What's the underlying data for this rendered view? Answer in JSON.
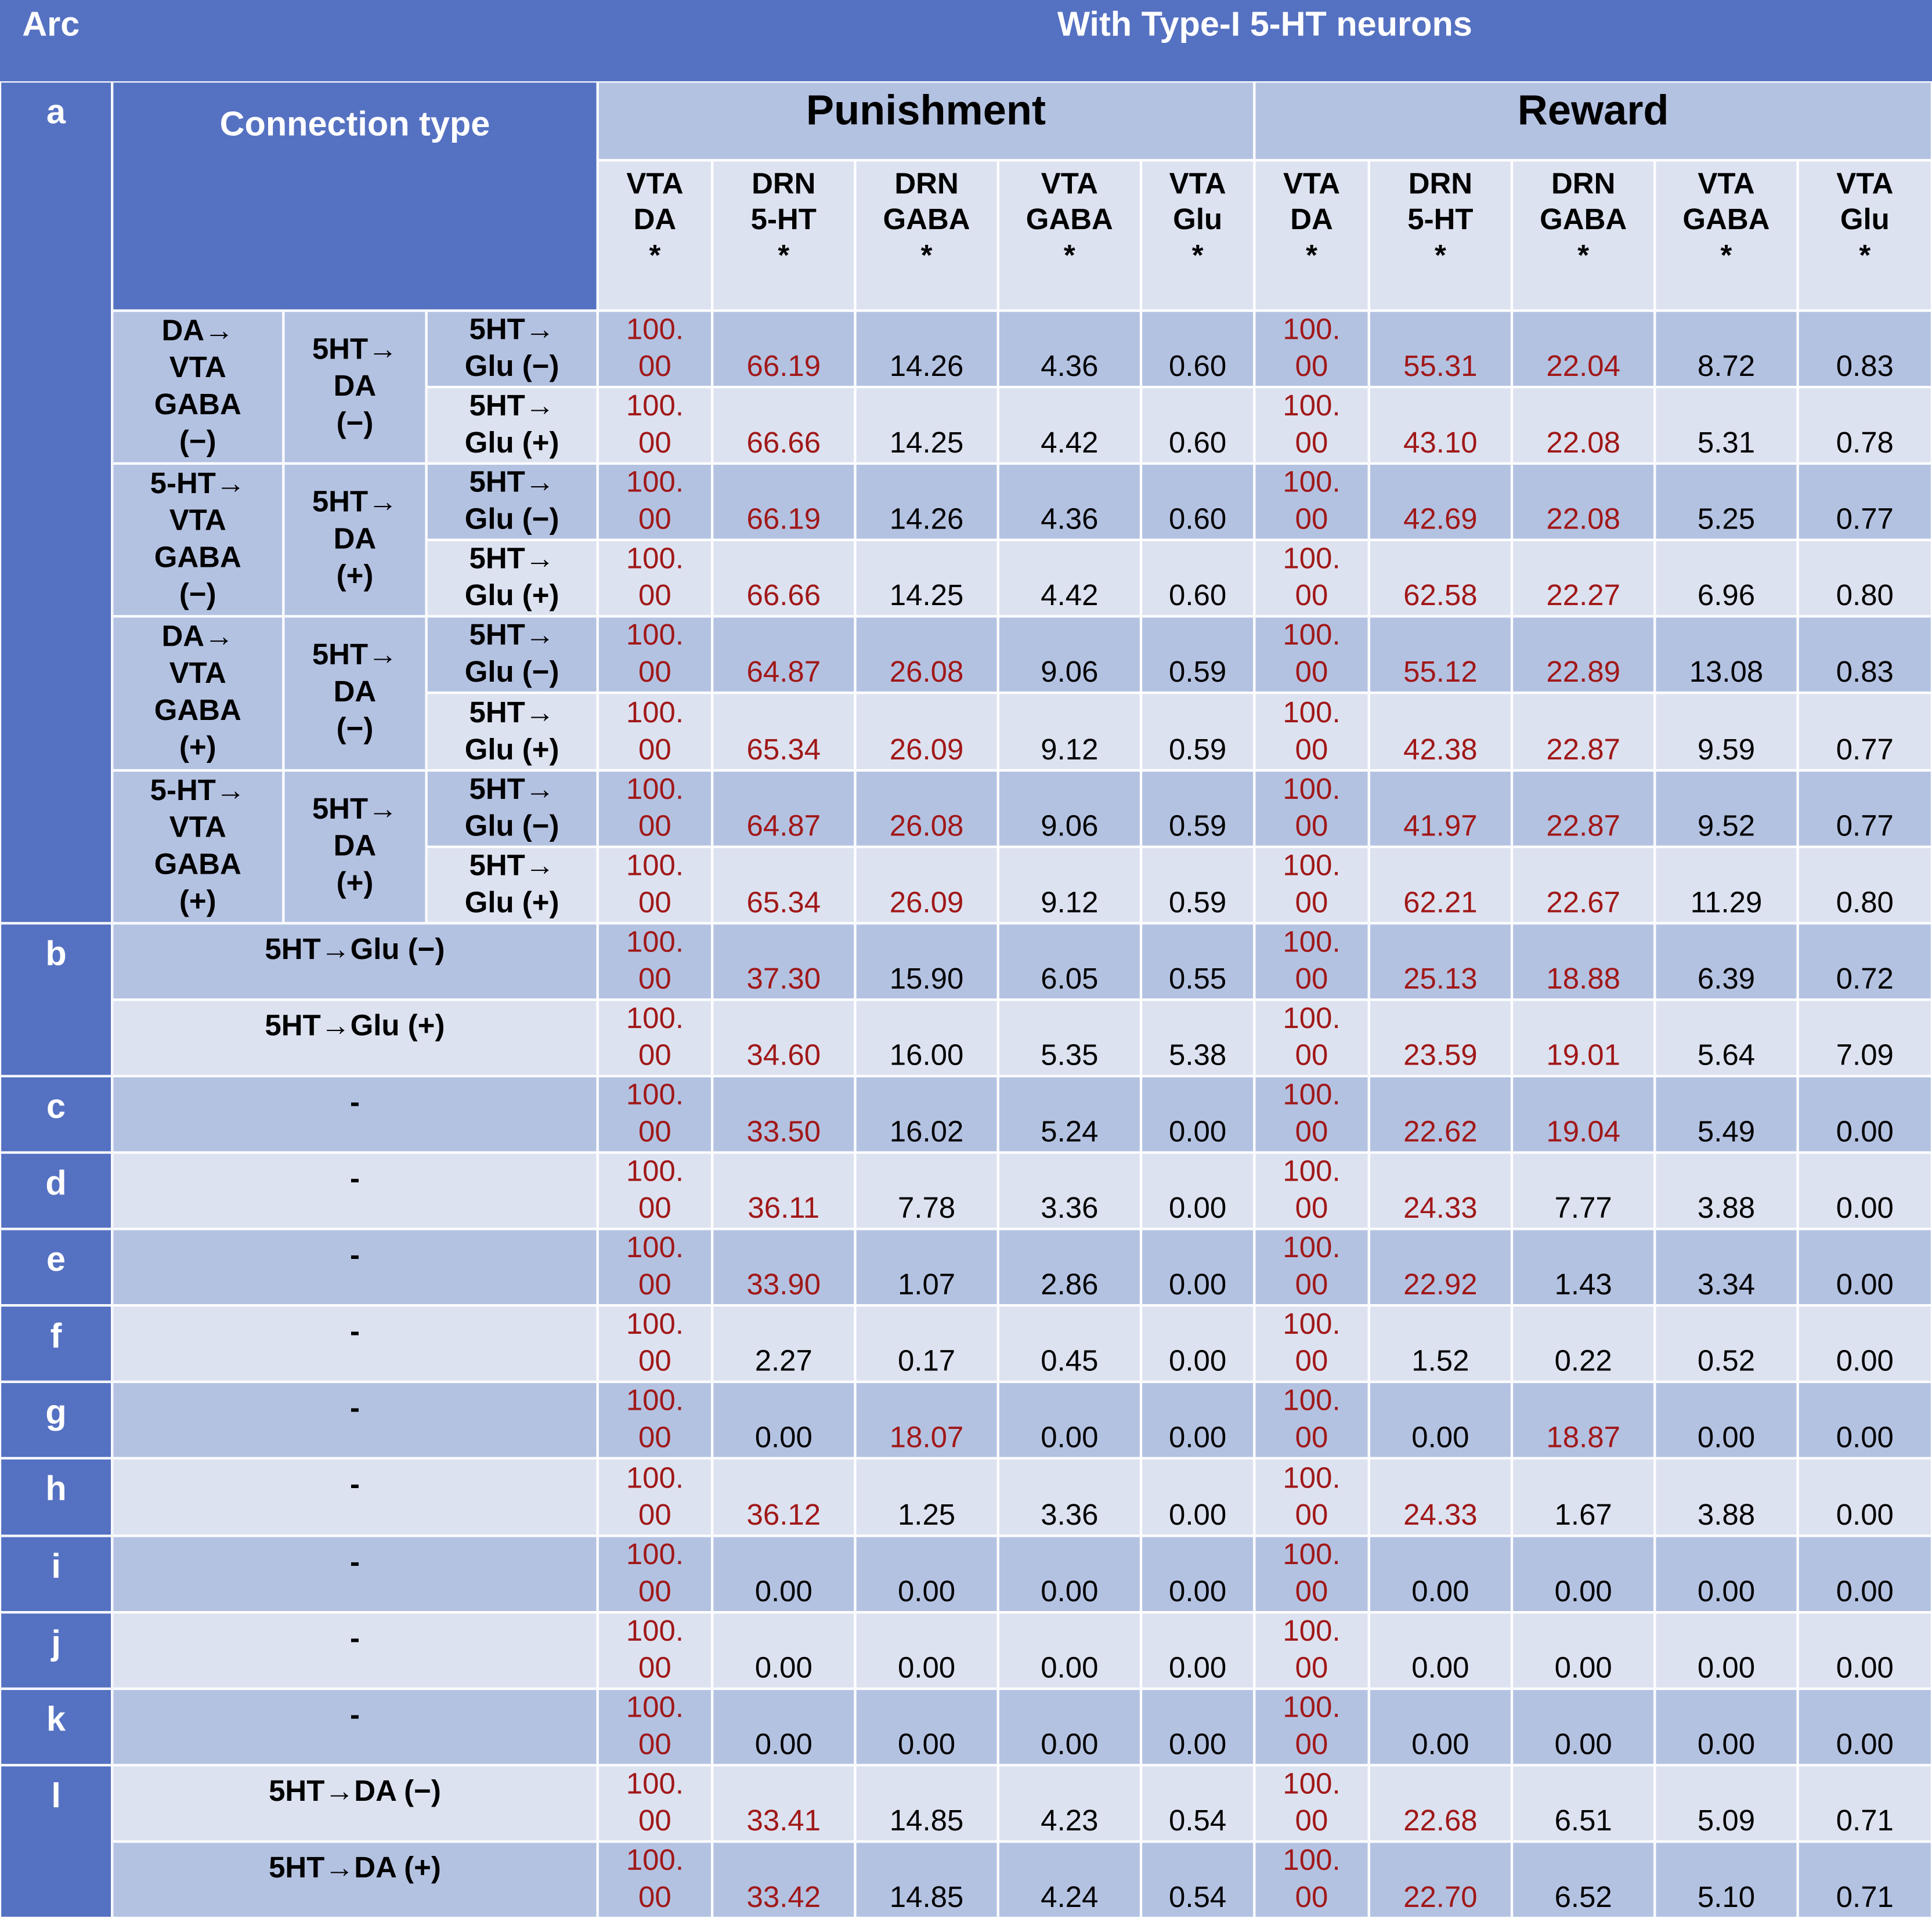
{
  "header": {
    "arc": "Arc",
    "title": "With Type-I 5-HT neurons",
    "connection_type": "Connection type"
  },
  "highlight_color": "#a01818",
  "groups": [
    {
      "name": "Punishment",
      "columns": [
        [
          "VTA",
          "DA",
          "*"
        ],
        [
          "DRN",
          "5-HT",
          "*"
        ],
        [
          "DRN",
          "GABA",
          "*"
        ],
        [
          "VTA",
          "GABA",
          "*"
        ],
        [
          "VTA",
          "Glu",
          "*"
        ]
      ]
    },
    {
      "name": "Reward",
      "columns": [
        [
          "VTA",
          "DA",
          "*"
        ],
        [
          "DRN",
          "5-HT",
          "*"
        ],
        [
          "DRN",
          "GABA",
          "*"
        ],
        [
          "VTA",
          "GABA",
          "*"
        ],
        [
          "VTA",
          "Glu",
          "*"
        ]
      ]
    }
  ],
  "sections": [
    {
      "label": "a",
      "groups": [
        {
          "source": [
            "DA→",
            "VTA",
            "GABA",
            "(−)"
          ],
          "target": [
            "5HT→",
            "DA",
            "(−)"
          ],
          "rows": [
            {
              "connection": [
                "5HT→",
                "Glu (−)"
              ],
              "values": [
                "100.00",
                "66.19",
                "14.26",
                "4.36",
                "0.60",
                "100.00",
                "55.31",
                "22.04",
                "8.72",
                "0.83"
              ],
              "highlight": [
                0,
                1,
                5,
                6,
                7
              ]
            },
            {
              "connection": [
                "5HT→",
                "Glu (+)"
              ],
              "values": [
                "100.00",
                "66.66",
                "14.25",
                "4.42",
                "0.60",
                "100.00",
                "43.10",
                "22.08",
                "5.31",
                "0.78"
              ],
              "highlight": [
                0,
                1,
                5,
                6,
                7
              ]
            }
          ]
        },
        {
          "source": [
            "5-HT→",
            "VTA",
            "GABA",
            "(−)"
          ],
          "target": [
            "5HT→",
            "DA",
            "(+)"
          ],
          "rows": [
            {
              "connection": [
                "5HT→",
                "Glu (−)"
              ],
              "values": [
                "100.00",
                "66.19",
                "14.26",
                "4.36",
                "0.60",
                "100.00",
                "42.69",
                "22.08",
                "5.25",
                "0.77"
              ],
              "highlight": [
                0,
                1,
                5,
                6,
                7
              ]
            },
            {
              "connection": [
                "5HT→",
                "Glu (+)"
              ],
              "values": [
                "100.00",
                "66.66",
                "14.25",
                "4.42",
                "0.60",
                "100.00",
                "62.58",
                "22.27",
                "6.96",
                "0.80"
              ],
              "highlight": [
                0,
                1,
                5,
                6,
                7
              ]
            }
          ]
        },
        {
          "source": [
            "DA→",
            "VTA",
            "GABA",
            "(+)"
          ],
          "target": [
            "5HT→",
            "DA",
            "(−)"
          ],
          "rows": [
            {
              "connection": [
                "5HT→",
                "Glu (−)"
              ],
              "values": [
                "100.00",
                "64.87",
                "26.08",
                "9.06",
                "0.59",
                "100.00",
                "55.12",
                "22.89",
                "13.08",
                "0.83"
              ],
              "highlight": [
                0,
                1,
                2,
                5,
                6,
                7
              ]
            },
            {
              "connection": [
                "5HT→",
                "Glu (+)"
              ],
              "values": [
                "100.00",
                "65.34",
                "26.09",
                "9.12",
                "0.59",
                "100.00",
                "42.38",
                "22.87",
                "9.59",
                "0.77"
              ],
              "highlight": [
                0,
                1,
                2,
                5,
                6,
                7
              ]
            }
          ]
        },
        {
          "source": [
            "5-HT→",
            "VTA",
            "GABA",
            "(+)"
          ],
          "target": [
            "5HT→",
            "DA",
            "(+)"
          ],
          "rows": [
            {
              "connection": [
                "5HT→",
                "Glu (−)"
              ],
              "values": [
                "100.00",
                "64.87",
                "26.08",
                "9.06",
                "0.59",
                "100.00",
                "41.97",
                "22.87",
                "9.52",
                "0.77"
              ],
              "highlight": [
                0,
                1,
                2,
                5,
                6,
                7
              ]
            },
            {
              "connection": [
                "5HT→",
                "Glu (+)"
              ],
              "values": [
                "100.00",
                "65.34",
                "26.09",
                "9.12",
                "0.59",
                "100.00",
                "62.21",
                "22.67",
                "11.29",
                "0.80"
              ],
              "highlight": [
                0,
                1,
                2,
                5,
                6,
                7
              ]
            }
          ]
        }
      ]
    },
    {
      "label": "b",
      "rows": [
        {
          "connection": "5HT→Glu (−)",
          "values": [
            "100.00",
            "37.30",
            "15.90",
            "6.05",
            "0.55",
            "100.00",
            "25.13",
            "18.88",
            "6.39",
            "0.72"
          ],
          "highlight": [
            0,
            1,
            5,
            6,
            7
          ]
        },
        {
          "connection": "5HT→Glu (+)",
          "values": [
            "100.00",
            "34.60",
            "16.00",
            "5.35",
            "5.38",
            "100.00",
            "23.59",
            "19.01",
            "5.64",
            "7.09"
          ],
          "highlight": [
            0,
            1,
            5,
            6,
            7
          ]
        }
      ]
    },
    {
      "label": "c",
      "rows": [
        {
          "connection": "-",
          "values": [
            "100.00",
            "33.50",
            "16.02",
            "5.24",
            "0.00",
            "100.00",
            "22.62",
            "19.04",
            "5.49",
            "0.00"
          ],
          "highlight": [
            0,
            1,
            5,
            6,
            7
          ]
        }
      ]
    },
    {
      "label": "d",
      "rows": [
        {
          "connection": "-",
          "values": [
            "100.00",
            "36.11",
            "7.78",
            "3.36",
            "0.00",
            "100.00",
            "24.33",
            "7.77",
            "3.88",
            "0.00"
          ],
          "highlight": [
            0,
            1,
            5,
            6
          ]
        }
      ]
    },
    {
      "label": "e",
      "rows": [
        {
          "connection": "-",
          "values": [
            "100.00",
            "33.90",
            "1.07",
            "2.86",
            "0.00",
            "100.00",
            "22.92",
            "1.43",
            "3.34",
            "0.00"
          ],
          "highlight": [
            0,
            1,
            5,
            6
          ]
        }
      ]
    },
    {
      "label": "f",
      "rows": [
        {
          "connection": "-",
          "values": [
            "100.00",
            "2.27",
            "0.17",
            "0.45",
            "0.00",
            "100.00",
            "1.52",
            "0.22",
            "0.52",
            "0.00"
          ],
          "highlight": [
            0,
            5
          ]
        }
      ]
    },
    {
      "label": "g",
      "rows": [
        {
          "connection": "-",
          "values": [
            "100.00",
            "0.00",
            "18.07",
            "0.00",
            "0.00",
            "100.00",
            "0.00",
            "18.87",
            "0.00",
            "0.00"
          ],
          "highlight": [
            0,
            2,
            5,
            7
          ]
        }
      ]
    },
    {
      "label": "h",
      "rows": [
        {
          "connection": "-",
          "values": [
            "100.00",
            "36.12",
            "1.25",
            "3.36",
            "0.00",
            "100.00",
            "24.33",
            "1.67",
            "3.88",
            "0.00"
          ],
          "highlight": [
            0,
            1,
            5,
            6
          ]
        }
      ]
    },
    {
      "label": "i",
      "rows": [
        {
          "connection": "-",
          "values": [
            "100.00",
            "0.00",
            "0.00",
            "0.00",
            "0.00",
            "100.00",
            "0.00",
            "0.00",
            "0.00",
            "0.00"
          ],
          "highlight": [
            0,
            5
          ]
        }
      ]
    },
    {
      "label": "j",
      "rows": [
        {
          "connection": "-",
          "values": [
            "100.00",
            "0.00",
            "0.00",
            "0.00",
            "0.00",
            "100.00",
            "0.00",
            "0.00",
            "0.00",
            "0.00"
          ],
          "highlight": [
            0,
            5
          ]
        }
      ]
    },
    {
      "label": "k",
      "rows": [
        {
          "connection": "-",
          "values": [
            "100.00",
            "0.00",
            "0.00",
            "0.00",
            "0.00",
            "100.00",
            "0.00",
            "0.00",
            "0.00",
            "0.00"
          ],
          "highlight": [
            0,
            5
          ]
        }
      ]
    },
    {
      "label": "l",
      "rows": [
        {
          "connection": "5HT→DA (−)",
          "values": [
            "100.00",
            "33.41",
            "14.85",
            "4.23",
            "0.54",
            "100.00",
            "22.68",
            "6.51",
            "5.09",
            "0.71"
          ],
          "highlight": [
            0,
            1,
            5,
            6
          ]
        },
        {
          "connection": "5HT→DA (+)",
          "values": [
            "100.00",
            "33.42",
            "14.85",
            "4.24",
            "0.54",
            "100.00",
            "22.70",
            "6.52",
            "5.10",
            "0.71"
          ],
          "highlight": [
            0,
            1,
            5,
            6
          ]
        }
      ]
    }
  ]
}
